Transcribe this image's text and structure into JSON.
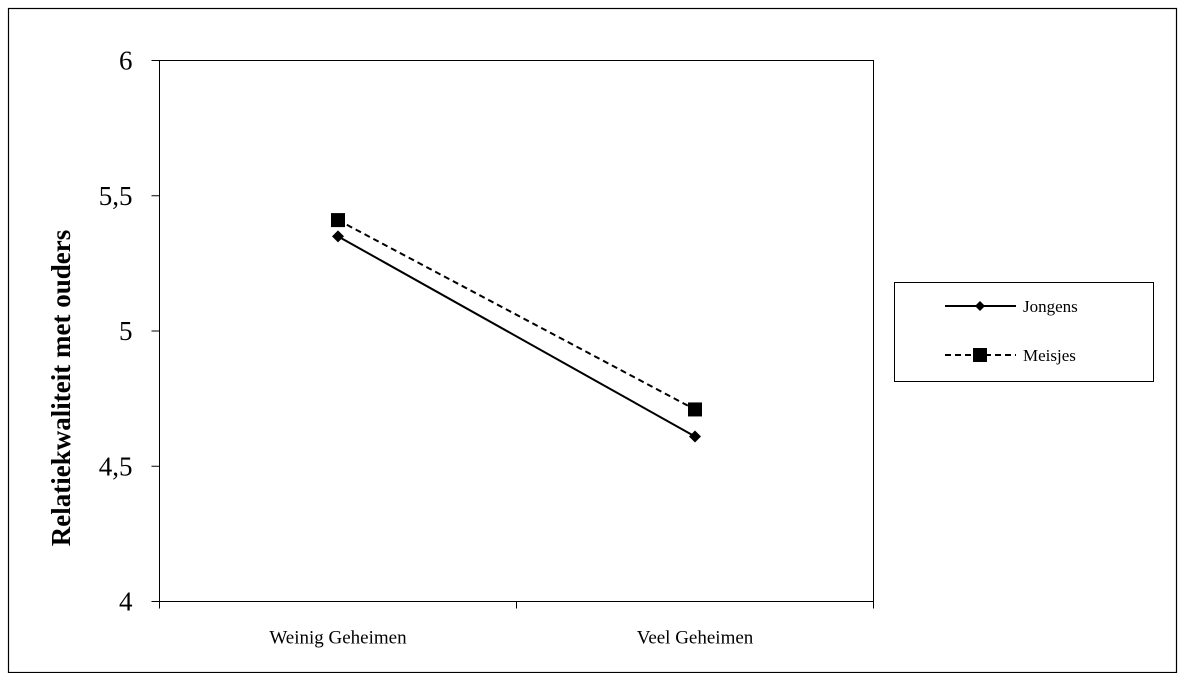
{
  "chart_data": {
    "type": "line",
    "title": "",
    "xlabel": "",
    "ylabel": "Relatiekwaliteit met ouders",
    "categories": [
      "Weinig Geheimen",
      "Veel Geheimen"
    ],
    "y_ticks": [
      "4",
      "4,5",
      "5",
      "5,5",
      "6"
    ],
    "ylim": [
      4,
      6
    ],
    "legend_position": "right",
    "grid": false,
    "series": [
      {
        "name": "Jongens",
        "values": [
          5.35,
          4.61
        ],
        "line_style": "solid",
        "marker": "diamond",
        "color": "#000000"
      },
      {
        "name": "Meisjes",
        "values": [
          5.41,
          4.71
        ],
        "line_style": "dashed",
        "marker": "square",
        "color": "#000000"
      }
    ]
  }
}
